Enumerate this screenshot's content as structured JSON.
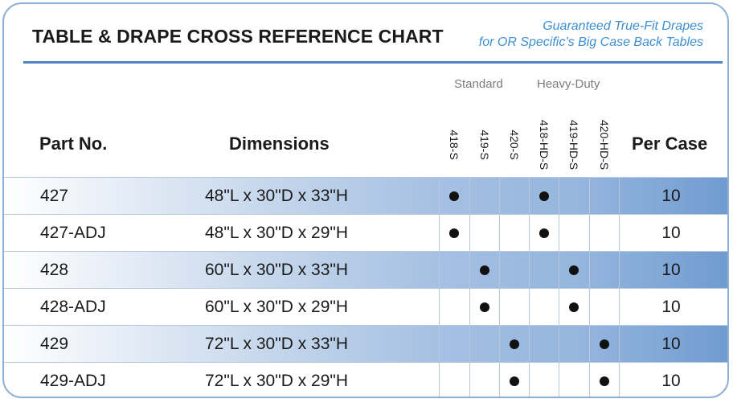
{
  "header": {
    "title": "TABLE & DRAPE CROSS REFERENCE CHART",
    "tagline_line1": "Guaranteed True-Fit Drapes",
    "tagline_line2": "for OR Specific’s Big Case Back Tables"
  },
  "columns": {
    "part_no": "Part No.",
    "dimensions": "Dimensions",
    "per_case": "Per Case",
    "group_standard": "Standard",
    "group_heavy": "Heavy-Duty",
    "drape_codes": [
      "418-S",
      "419-S",
      "420-S",
      "418-HD-S",
      "419-HD-S",
      "420-HD-S"
    ]
  },
  "rows": [
    {
      "part": "427",
      "dimensions": "48\"L x 30\"D x 33\"H",
      "fits": [
        true,
        false,
        false,
        true,
        false,
        false
      ],
      "per_case": "10"
    },
    {
      "part": "427-ADJ",
      "dimensions": "48\"L x 30\"D x 29\"H",
      "fits": [
        true,
        false,
        false,
        true,
        false,
        false
      ],
      "per_case": "10"
    },
    {
      "part": "428",
      "dimensions": "60\"L x 30\"D x 33\"H",
      "fits": [
        false,
        true,
        false,
        false,
        true,
        false
      ],
      "per_case": "10"
    },
    {
      "part": "428-ADJ",
      "dimensions": "60\"L x 30\"D x 29\"H",
      "fits": [
        false,
        true,
        false,
        false,
        true,
        false
      ],
      "per_case": "10"
    },
    {
      "part": "429",
      "dimensions": "72\"L x 30\"D x 33\"H",
      "fits": [
        false,
        false,
        true,
        false,
        false,
        true
      ],
      "per_case": "10"
    },
    {
      "part": "429-ADJ",
      "dimensions": "72\"L x 30\"D x 29\"H",
      "fits": [
        false,
        false,
        true,
        false,
        false,
        true
      ],
      "per_case": "10"
    }
  ],
  "colors": {
    "accent": "#4f86c2",
    "tagline": "#3b8ed1",
    "frame": "#8fb0d4"
  }
}
